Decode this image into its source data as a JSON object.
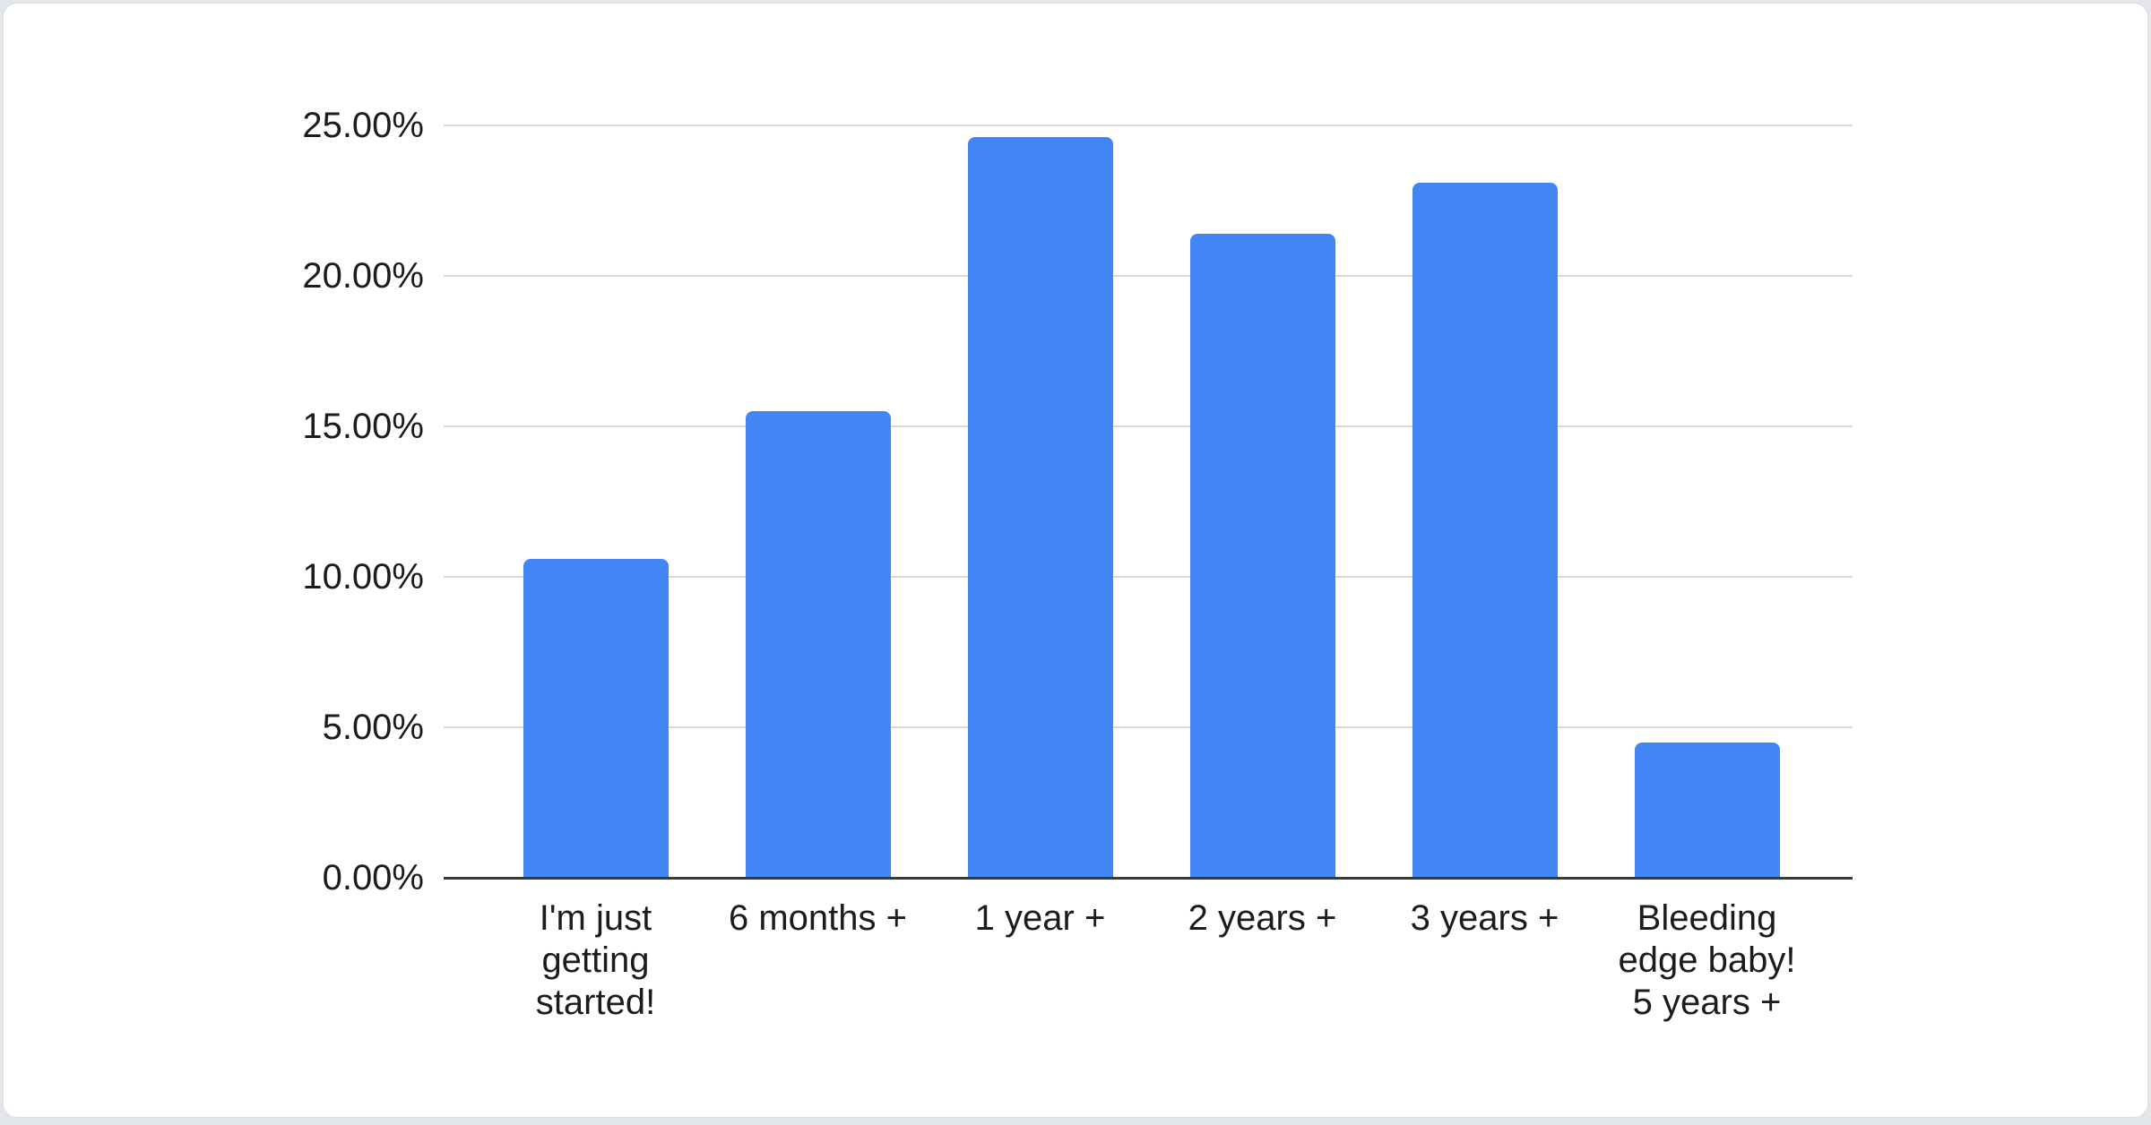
{
  "page": {
    "background_color": "#e2e5e9",
    "card_background_color": "#ffffff"
  },
  "chart_data": {
    "type": "bar",
    "title": "",
    "xlabel": "",
    "ylabel": "",
    "categories": [
      "I'm just getting started!",
      "6 months +",
      "1 year +",
      "2 years +",
      "3 years +",
      "Bleeding edge baby! 5 years +"
    ],
    "values": [
      10.6,
      15.5,
      24.6,
      21.4,
      23.1,
      4.5
    ],
    "value_unit": "%",
    "ylim": [
      0,
      25
    ],
    "yticks": [
      {
        "value": 0,
        "label": "0.00%"
      },
      {
        "value": 5,
        "label": "5.00%"
      },
      {
        "value": 10,
        "label": "10.00%"
      },
      {
        "value": 15,
        "label": "15.00%"
      },
      {
        "value": 20,
        "label": "20.00%"
      },
      {
        "value": 25,
        "label": "25.00%"
      }
    ],
    "grid": true,
    "legend_position": "none",
    "bar_color": "#4285f4",
    "gridline_color": "#d9d9d9",
    "axis_line_color": "#3a3a3a",
    "label_color": "#1c1c1c"
  }
}
